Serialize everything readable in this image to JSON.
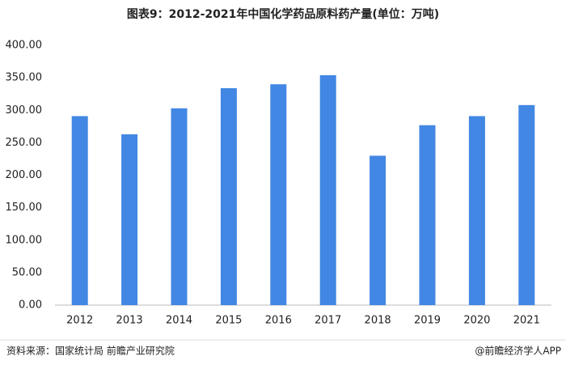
{
  "chart_data": {
    "type": "bar",
    "title": "图表9：2012-2021年中国化学药品原料药产量(单位：万吨)",
    "categories": [
      "2012",
      "2013",
      "2014",
      "2015",
      "2016",
      "2017",
      "2018",
      "2019",
      "2020",
      "2021"
    ],
    "values": [
      291,
      263,
      303,
      334,
      340,
      354,
      230,
      277,
      291,
      308
    ],
    "color": "#4287e3",
    "ylim": [
      0,
      400
    ],
    "yticks": [
      {
        "value": 0,
        "label": "0.00"
      },
      {
        "value": 50,
        "label": "50.00"
      },
      {
        "value": 100,
        "label": "100.00"
      },
      {
        "value": 150,
        "label": "150.00"
      },
      {
        "value": 200,
        "label": "200.00"
      },
      {
        "value": 250,
        "label": "250.00"
      },
      {
        "value": 300,
        "label": "300.00"
      },
      {
        "value": 350,
        "label": "350.00"
      },
      {
        "value": 400,
        "label": "400.00"
      }
    ],
    "grid": false,
    "source": "资料来源：国家统计局 前瞻产业研究院",
    "credit": "@前瞻经济学人APP"
  }
}
